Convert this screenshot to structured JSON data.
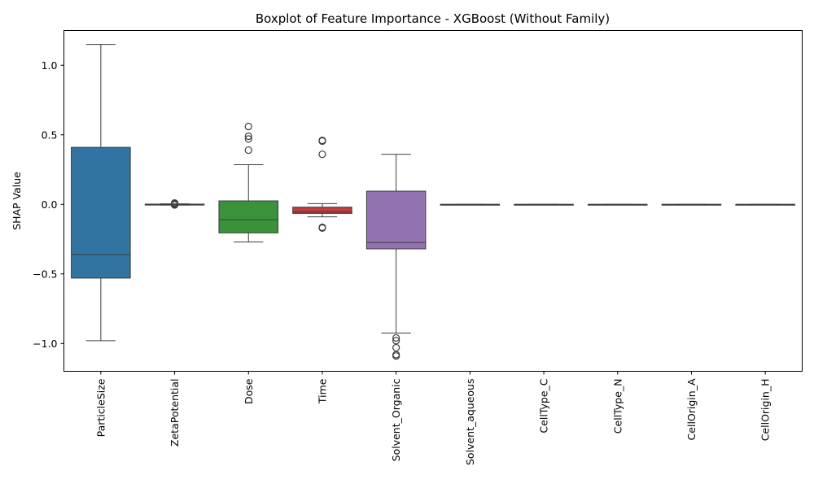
{
  "chart_data": {
    "type": "box",
    "title": "Boxplot of Feature Importance - XGBoost (Without Family)",
    "xlabel": "",
    "ylabel": "SHAP Value",
    "ylim": [
      -1.2,
      1.25
    ],
    "yticks": [
      -1.0,
      -0.5,
      0.0,
      0.5,
      1.0
    ],
    "ytick_labels": [
      "−1.0",
      "−0.5",
      "0.0",
      "0.5",
      "1.0"
    ],
    "grid": false,
    "legend": "none",
    "categories": [
      "ParticleSize",
      "ZetaPotential",
      "Dose",
      "Time",
      "Solvent_Organic",
      "Solvent_aqueous",
      "CellType_C",
      "CellType_N",
      "CellOrigin_A",
      "CellOrigin_H"
    ],
    "boxes": [
      {
        "category": "ParticleSize",
        "whisker_low": -0.98,
        "q1": -0.53,
        "median": -0.36,
        "q3": 0.41,
        "whisker_high": 1.15,
        "outliers": [],
        "color": "#3274a1"
      },
      {
        "category": "ZetaPotential",
        "whisker_low": -0.005,
        "q1": -0.005,
        "median": -0.002,
        "q3": 0.002,
        "whisker_high": 0.004,
        "outliers": [
          0.0,
          0.003,
          0.006,
          0.01,
          -0.004
        ],
        "color": "#3a923a"
      },
      {
        "category": "Dose",
        "whisker_low": -0.27,
        "q1": -0.205,
        "median": -0.11,
        "q3": 0.025,
        "whisker_high": 0.285,
        "outliers": [
          0.39,
          0.47,
          0.49,
          0.56
        ],
        "color": "#3a923a"
      },
      {
        "category": "Time",
        "whisker_low": -0.09,
        "q1": -0.065,
        "median": -0.055,
        "q3": -0.02,
        "whisker_high": 0.005,
        "outliers": [
          -0.165,
          -0.17,
          0.36,
          0.455,
          0.46
        ],
        "color": "#c03d3e"
      },
      {
        "category": "Solvent_Organic",
        "whisker_low": -0.925,
        "q1": -0.32,
        "median": -0.275,
        "q3": 0.095,
        "whisker_high": 0.36,
        "outliers": [
          -0.96,
          -0.98,
          -1.03,
          -1.08,
          -1.09
        ],
        "color": "#9372b2"
      },
      {
        "category": "Solvent_aqueous",
        "whisker_low": 0.0,
        "q1": 0.0,
        "median": 0.0,
        "q3": 0.0,
        "whisker_high": 0.0,
        "outliers": [],
        "color": "#845b53"
      },
      {
        "category": "CellType_C",
        "whisker_low": 0.0,
        "q1": 0.0,
        "median": 0.0,
        "q3": 0.0,
        "whisker_high": 0.0,
        "outliers": [],
        "color": "#d684bd"
      },
      {
        "category": "CellType_N",
        "whisker_low": 0.0,
        "q1": 0.0,
        "median": 0.0,
        "q3": 0.0,
        "whisker_high": 0.0,
        "outliers": [],
        "color": "#7f7f7f"
      },
      {
        "category": "CellOrigin_A",
        "whisker_low": 0.0,
        "q1": 0.0,
        "median": 0.0,
        "q3": 0.0,
        "whisker_high": 0.0,
        "outliers": [],
        "color": "#a9aa35"
      },
      {
        "category": "CellOrigin_H",
        "whisker_low": 0.0,
        "q1": 0.0,
        "median": 0.0,
        "q3": 0.0,
        "whisker_high": 0.0,
        "outliers": [],
        "color": "#2ed0ea"
      }
    ]
  }
}
